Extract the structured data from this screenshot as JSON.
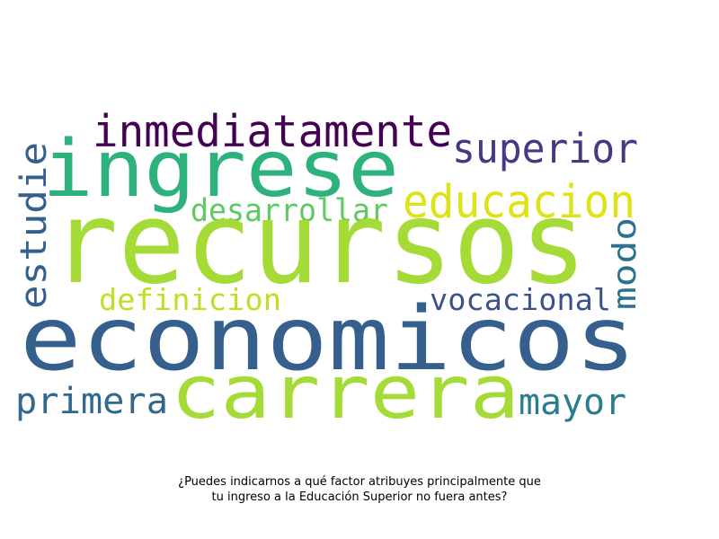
{
  "wordcloud": {
    "words": [
      {
        "text": "recursos",
        "color": "#a5db36"
      },
      {
        "text": "economicos",
        "color": "#355f8d"
      },
      {
        "text": "ingrese",
        "color": "#2db27d"
      },
      {
        "text": "carrera",
        "color": "#a5db36"
      },
      {
        "text": "inmediatamente",
        "color": "#440154"
      },
      {
        "text": "superior",
        "color": "#443983"
      },
      {
        "text": "educacion",
        "color": "#dde318"
      },
      {
        "text": "estudie",
        "color": "#355f8d"
      },
      {
        "text": "desarrollar",
        "color": "#5ec962"
      },
      {
        "text": "modo",
        "color": "#2c728e"
      },
      {
        "text": "definicion",
        "color": "#bddf26"
      },
      {
        "text": "vocacional",
        "color": "#3b528b"
      },
      {
        "text": "primera",
        "color": "#31688e"
      },
      {
        "text": "mayor",
        "color": "#287d8e"
      }
    ]
  },
  "caption": {
    "line1": "¿Puedes indicarnos a qué factor atribuyes principalmente que",
    "line2": "tu ingreso a la Educación Superior no fuera antes?"
  }
}
